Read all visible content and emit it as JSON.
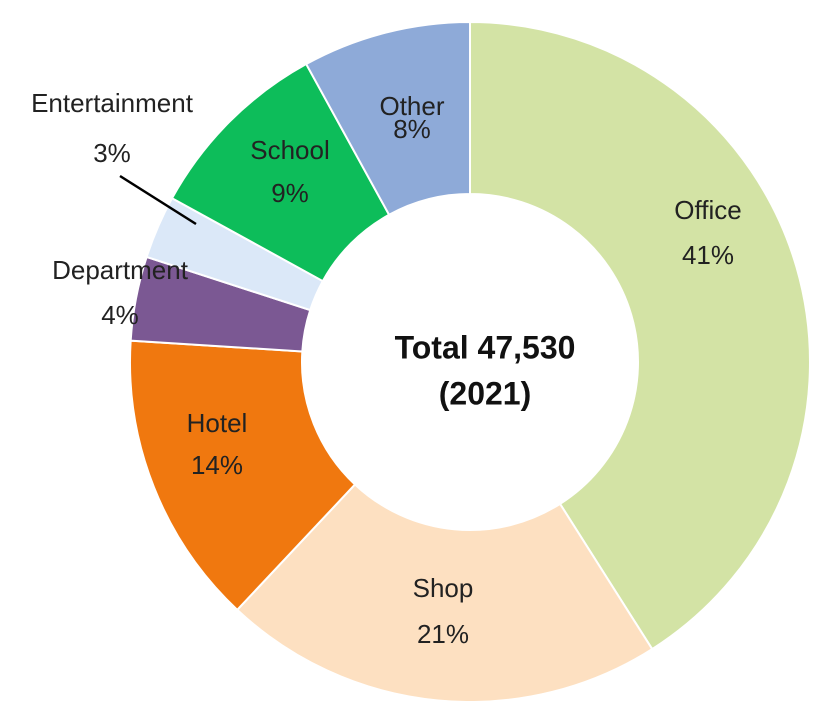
{
  "chart_data": {
    "type": "donut",
    "categories": [
      "Office",
      "Shop",
      "Hotel",
      "Department",
      "Entertainment",
      "School",
      "Other"
    ],
    "values": [
      41,
      21,
      14,
      4,
      3,
      9,
      8
    ],
    "value_labels": [
      "41%",
      "21%",
      "14%",
      "4%",
      "3%",
      "9%",
      "8%"
    ],
    "colors": [
      "#d3e3a5",
      "#fde0c1",
      "#f0780f",
      "#7b5893",
      "#dbe8f8",
      "#0dbd5a",
      "#8eaad8"
    ],
    "center_text": [
      "Total  47,530",
      "(2021)"
    ]
  }
}
